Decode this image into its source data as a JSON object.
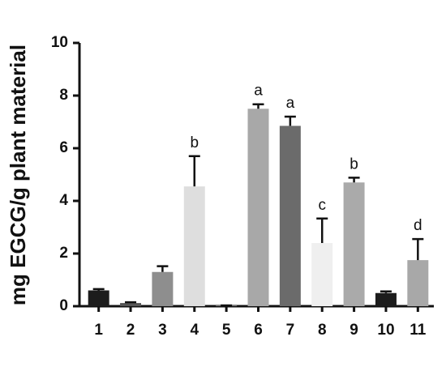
{
  "chart_data": {
    "type": "bar",
    "y_label": "mg EGCG/g plant material",
    "categories": [
      "1",
      "2",
      "3",
      "4",
      "5",
      "6",
      "7",
      "8",
      "9",
      "10",
      "11"
    ],
    "values": [
      0.6,
      0.12,
      1.3,
      4.55,
      0.03,
      7.5,
      6.85,
      2.4,
      4.7,
      0.5,
      1.75
    ],
    "errors": [
      0.05,
      0.03,
      0.22,
      1.15,
      0,
      0.17,
      0.35,
      0.93,
      0.18,
      0.06,
      0.8
    ],
    "colors": [
      "#1c1c1c",
      "#555555",
      "#8e8e8e",
      "#dedede",
      "#777777",
      "#a8a8a8",
      "#6b6b6b",
      "#efefef",
      "#aaaaaa",
      "#1c1c1c",
      "#a8a8a8"
    ],
    "annotations": [
      null,
      null,
      null,
      "b",
      null,
      "a",
      "a",
      "c",
      "b",
      null,
      "d"
    ],
    "ylim": [
      0,
      10
    ],
    "yticks": [
      0,
      2,
      4,
      6,
      8,
      10
    ]
  }
}
